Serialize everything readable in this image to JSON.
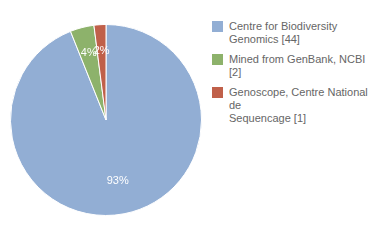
{
  "chart_data": {
    "type": "pie",
    "categories": [
      "Centre for Biodiversity\nGenomics [44]",
      "Mined from GenBank, NCBI [2]",
      "Genoscope, Centre National de\nSequencage [1]"
    ],
    "values": [
      93,
      4,
      2
    ],
    "value_labels": [
      "93%",
      "4%",
      "2%"
    ],
    "colors": [
      "#92aed4",
      "#8db26b",
      "#c0604a"
    ],
    "data_labels": true,
    "legend": "right"
  }
}
